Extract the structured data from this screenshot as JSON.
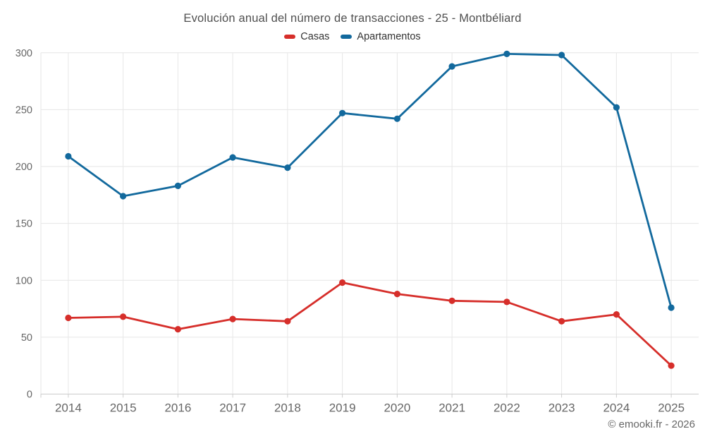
{
  "title": "Evolución anual del número de transacciones - 25 - Montbéliard",
  "footer": "© emooki.fr - 2026",
  "colors": {
    "casas": "#d62e2a",
    "apartamentos": "#12699d",
    "grid": "#e6e6e6",
    "axis_line": "#cccccc",
    "title_text": "#4f4f4f",
    "axis_text": "#666666",
    "legend_text": "#333333",
    "background": "#ffffff"
  },
  "chart_data": {
    "type": "line",
    "title": "Evolución anual del número de transacciones - 25 - Montbéliard",
    "categories": [
      "2014",
      "2015",
      "2016",
      "2017",
      "2018",
      "2019",
      "2020",
      "2021",
      "2022",
      "2023",
      "2024",
      "2025"
    ],
    "series": [
      {
        "name": "Casas",
        "color": "#d62e2a",
        "values": [
          67,
          68,
          57,
          66,
          64,
          98,
          88,
          82,
          81,
          64,
          70,
          25
        ]
      },
      {
        "name": "Apartamentos",
        "color": "#12699d",
        "values": [
          209,
          174,
          183,
          208,
          199,
          247,
          242,
          288,
          299,
          298,
          252,
          76
        ]
      }
    ],
    "xlabel": "",
    "ylabel": "",
    "ylim": [
      0,
      300
    ],
    "ytick_step": 50,
    "yticks": [
      0,
      50,
      100,
      150,
      200,
      250,
      300
    ],
    "grid": true,
    "legend_position": "top",
    "marker": "circle"
  }
}
